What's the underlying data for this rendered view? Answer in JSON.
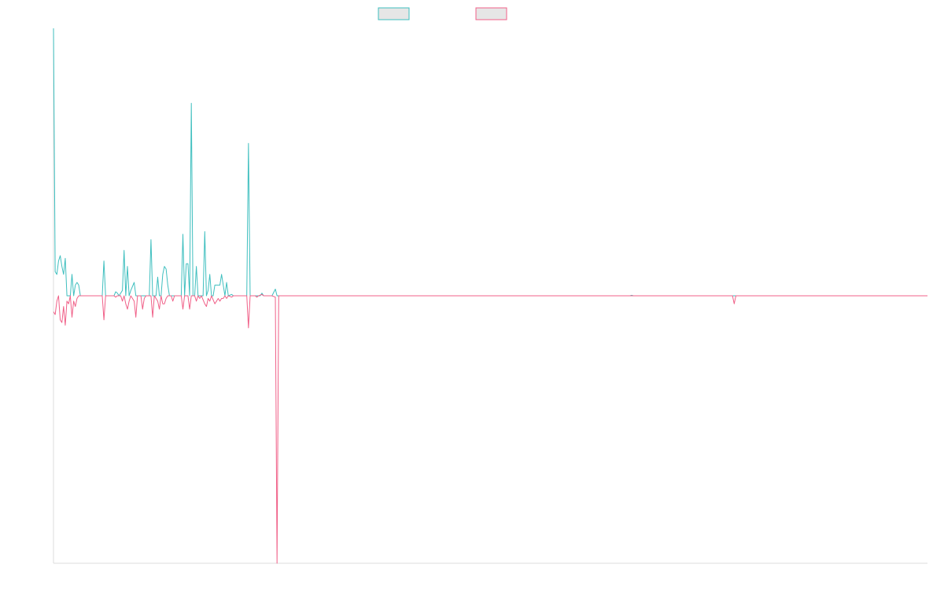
{
  "chart_data": {
    "type": "line",
    "xlabel": "",
    "ylabel": "",
    "legend_position": "top-center",
    "grid": false,
    "xlim": [
      0,
      520
    ],
    "ylim": [
      -1.0,
      1.0
    ],
    "series": [
      {
        "color": "#3fbfbf",
        "legend_fill": "#e6e6e6",
        "points": [
          [
            0,
            1.0
          ],
          [
            1,
            0.09
          ],
          [
            2,
            0.08
          ],
          [
            3,
            0.13
          ],
          [
            4,
            0.15
          ],
          [
            5,
            0.11
          ],
          [
            6,
            0.08
          ],
          [
            7,
            0.14
          ],
          [
            8,
            0.0
          ],
          [
            9,
            0.0
          ],
          [
            10,
            0.0
          ],
          [
            11,
            0.08
          ],
          [
            12,
            0.0
          ],
          [
            13,
            0.04
          ],
          [
            14,
            0.05
          ],
          [
            15,
            0.04
          ],
          [
            16,
            0.0
          ],
          [
            20,
            0.0
          ],
          [
            29,
            0.0
          ],
          [
            30,
            0.13
          ],
          [
            31,
            0.0
          ],
          [
            36,
            0.0
          ],
          [
            37,
            0.015
          ],
          [
            38,
            0.01
          ],
          [
            39,
            0.0
          ],
          [
            41,
            0.02
          ],
          [
            42,
            0.17
          ],
          [
            43,
            0.0
          ],
          [
            44,
            0.11
          ],
          [
            45,
            0.0
          ],
          [
            46,
            0.02
          ],
          [
            48,
            0.05
          ],
          [
            49,
            0.0
          ],
          [
            50,
            0.0
          ],
          [
            51,
            0.0
          ],
          [
            52,
            0.0
          ],
          [
            53,
            0.0
          ],
          [
            54,
            0.0
          ],
          [
            55,
            0.0
          ],
          [
            56,
            0.0
          ],
          [
            57,
            0.0
          ],
          [
            58,
            0.21
          ],
          [
            59,
            0.0
          ],
          [
            60,
            0.0
          ],
          [
            61,
            0.0
          ],
          [
            62,
            0.07
          ],
          [
            63,
            0.0
          ],
          [
            64,
            0.0
          ],
          [
            65,
            0.08
          ],
          [
            66,
            0.11
          ],
          [
            67,
            0.1
          ],
          [
            68,
            0.04
          ],
          [
            69,
            0.0
          ],
          [
            70,
            0.0
          ],
          [
            71,
            0.0
          ],
          [
            72,
            0.0
          ],
          [
            76,
            0.0
          ],
          [
            77,
            0.23
          ],
          [
            78,
            0.0
          ],
          [
            79,
            0.12
          ],
          [
            80,
            0.12
          ],
          [
            81,
            0.0
          ],
          [
            82,
            0.72
          ],
          [
            83,
            0.0
          ],
          [
            84,
            0.0
          ],
          [
            85,
            0.11
          ],
          [
            86,
            0.0
          ],
          [
            87,
            0.0
          ],
          [
            88,
            0.0
          ],
          [
            89,
            0.0
          ],
          [
            90,
            0.24
          ],
          [
            91,
            0.0
          ],
          [
            92,
            0.02
          ],
          [
            93,
            0.08
          ],
          [
            94,
            0.0
          ],
          [
            95,
            0.0
          ],
          [
            96,
            0.04
          ],
          [
            97,
            0.04
          ],
          [
            98,
            0.04
          ],
          [
            99,
            0.04
          ],
          [
            100,
            0.08
          ],
          [
            101,
            0.04
          ],
          [
            102,
            0.0
          ],
          [
            103,
            0.05
          ],
          [
            104,
            0.0
          ],
          [
            106,
            0.005
          ],
          [
            107,
            0.0
          ],
          [
            110,
            0.0
          ],
          [
            115,
            0.0
          ],
          [
            116,
            0.57
          ],
          [
            117,
            0.0
          ],
          [
            120,
            0.0
          ],
          [
            121,
            0.0
          ],
          [
            122,
            0.0
          ],
          [
            123,
            0.0
          ],
          [
            124,
            0.01
          ],
          [
            125,
            0.0
          ],
          [
            130,
            0.0
          ],
          [
            132,
            0.025
          ],
          [
            133,
            0.0
          ],
          [
            135,
            0.0
          ],
          [
            200,
            0.0
          ],
          [
            343,
            0.0
          ],
          [
            344,
            0.002
          ],
          [
            345,
            0.0
          ],
          [
            520,
            0.0
          ]
        ]
      },
      {
        "color": "#f06088",
        "legend_fill": "#e6e6e6",
        "points": [
          [
            0,
            -0.06
          ],
          [
            1,
            -0.07
          ],
          [
            2,
            -0.02
          ],
          [
            3,
            0.0
          ],
          [
            4,
            -0.09
          ],
          [
            5,
            -0.1
          ],
          [
            6,
            -0.04
          ],
          [
            7,
            -0.11
          ],
          [
            8,
            -0.02
          ],
          [
            9,
            -0.03
          ],
          [
            10,
            0.0
          ],
          [
            11,
            -0.08
          ],
          [
            12,
            -0.02
          ],
          [
            13,
            -0.04
          ],
          [
            14,
            -0.01
          ],
          [
            15,
            0.0
          ],
          [
            16,
            0.0
          ],
          [
            29,
            0.0
          ],
          [
            30,
            -0.09
          ],
          [
            31,
            0.0
          ],
          [
            36,
            0.0
          ],
          [
            37,
            -0.005
          ],
          [
            38,
            0.0
          ],
          [
            40,
            0.0
          ],
          [
            41,
            -0.02
          ],
          [
            42,
            0.0
          ],
          [
            43,
            -0.03
          ],
          [
            44,
            -0.05
          ],
          [
            45,
            -0.02
          ],
          [
            46,
            0.0
          ],
          [
            48,
            -0.02
          ],
          [
            49,
            -0.08
          ],
          [
            50,
            0.0
          ],
          [
            52,
            0.0
          ],
          [
            53,
            -0.05
          ],
          [
            54,
            -0.01
          ],
          [
            55,
            0.0
          ],
          [
            58,
            0.0
          ],
          [
            59,
            -0.08
          ],
          [
            60,
            0.0
          ],
          [
            62,
            -0.02
          ],
          [
            63,
            -0.05
          ],
          [
            64,
            0.0
          ],
          [
            65,
            -0.03
          ],
          [
            66,
            -0.03
          ],
          [
            67,
            -0.01
          ],
          [
            68,
            0.0
          ],
          [
            70,
            0.0
          ],
          [
            71,
            -0.02
          ],
          [
            72,
            0.0
          ],
          [
            76,
            0.0
          ],
          [
            77,
            -0.05
          ],
          [
            78,
            0.0
          ],
          [
            80,
            0.0
          ],
          [
            81,
            -0.05
          ],
          [
            82,
            0.0
          ],
          [
            84,
            0.0
          ],
          [
            85,
            -0.02
          ],
          [
            86,
            0.0
          ],
          [
            87,
            -0.01
          ],
          [
            88,
            0.0
          ],
          [
            90,
            -0.03
          ],
          [
            91,
            -0.04
          ],
          [
            92,
            -0.01
          ],
          [
            93,
            -0.02
          ],
          [
            94,
            0.0
          ],
          [
            96,
            -0.03
          ],
          [
            97,
            -0.02
          ],
          [
            98,
            -0.01
          ],
          [
            99,
            -0.02
          ],
          [
            100,
            -0.01
          ],
          [
            101,
            -0.01
          ],
          [
            102,
            0.0
          ],
          [
            103,
            -0.01
          ],
          [
            104,
            0.0
          ],
          [
            106,
            -0.005
          ],
          [
            107,
            0.0
          ],
          [
            115,
            0.0
          ],
          [
            116,
            -0.12
          ],
          [
            117,
            0.0
          ],
          [
            120,
            0.0
          ],
          [
            121,
            -0.005
          ],
          [
            122,
            0.0
          ],
          [
            124,
            0.005
          ],
          [
            125,
            0.0
          ],
          [
            130,
            0.0
          ],
          [
            132,
            -0.005
          ],
          [
            133,
            -1.0
          ],
          [
            134,
            0.0
          ],
          [
            135,
            0.0
          ],
          [
            404,
            0.0
          ],
          [
            405,
            -0.03
          ],
          [
            406,
            0.0
          ],
          [
            520,
            0.0
          ]
        ]
      }
    ]
  }
}
